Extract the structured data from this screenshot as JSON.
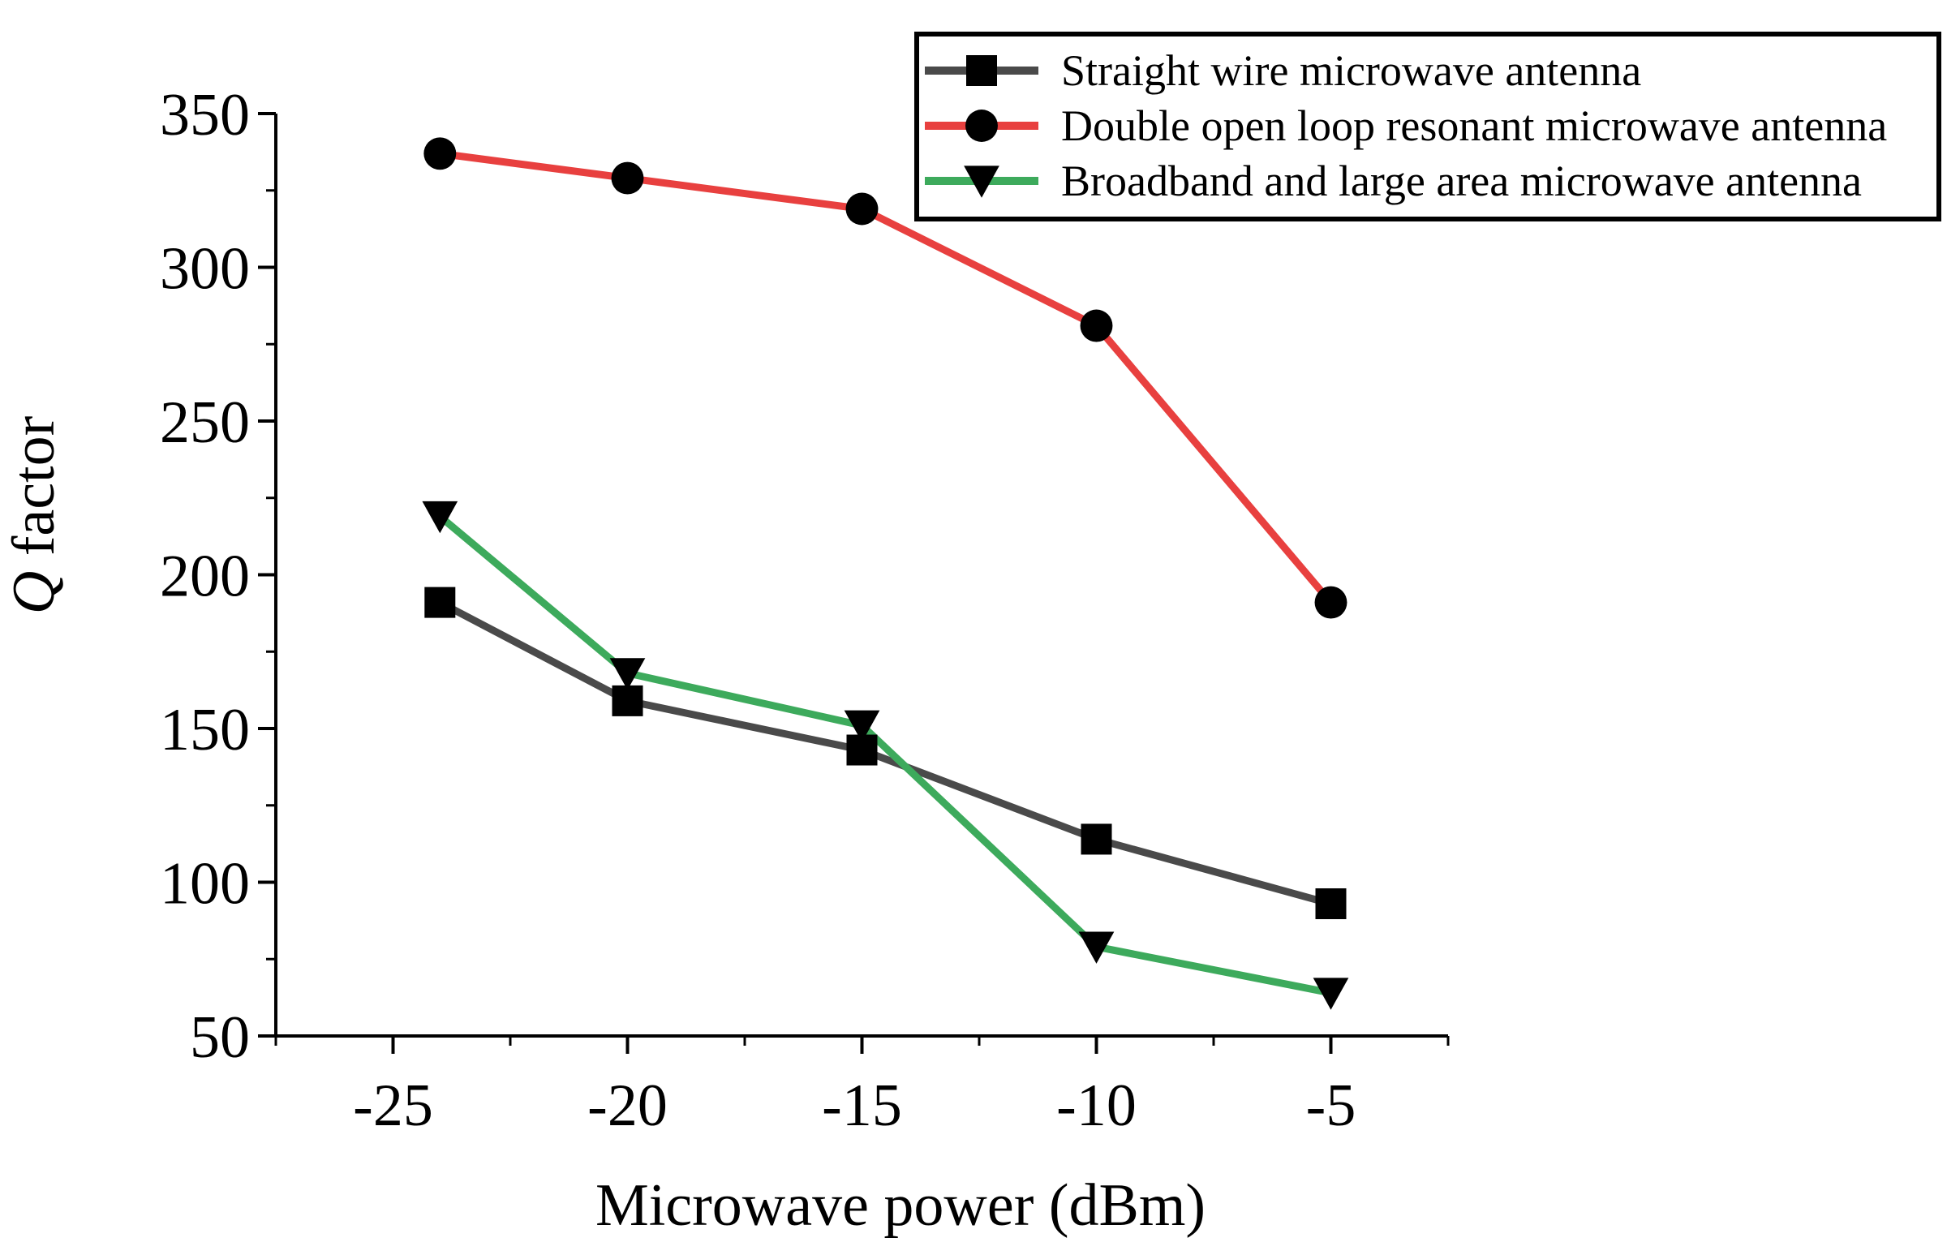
{
  "chart_data": {
    "type": "line",
    "xlabel": "Microwave power (dBm)",
    "ylabel_italic": "Q",
    "ylabel_rest": " factor",
    "xlim": [
      -27.5,
      -2.5
    ],
    "ylim": [
      50,
      350
    ],
    "xticks": [
      -25,
      -20,
      -15,
      -10,
      -5
    ],
    "yticks": [
      50,
      100,
      150,
      200,
      250,
      300,
      350
    ],
    "x": [
      -24,
      -20,
      -15,
      -10,
      -5
    ],
    "legend_position": "top-right",
    "series": [
      {
        "name": "Straight wire microwave antenna",
        "color": "#4a4a4a",
        "marker": "square",
        "values": [
          191,
          159,
          143,
          114,
          93
        ]
      },
      {
        "name": "Double open loop resonant microwave antenna",
        "color": "#e8403f",
        "marker": "circle",
        "values": [
          337,
          329,
          319,
          281,
          191
        ]
      },
      {
        "name": "Broadband and large area microwave antenna",
        "color": "#3daa5c",
        "marker": "triangle-down",
        "values": [
          219,
          168,
          151,
          79,
          64
        ]
      }
    ]
  }
}
